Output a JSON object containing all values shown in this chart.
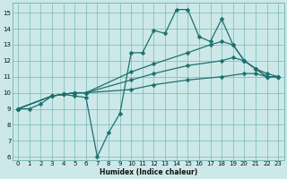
{
  "xlabel": "Humidex (Indice chaleur)",
  "bg_color": "#cce8e8",
  "grid_color": "#7ab8b8",
  "line_color": "#1e7070",
  "markersize": 2.5,
  "linewidth": 0.9,
  "xlim": [
    -0.5,
    23.5
  ],
  "ylim": [
    5.8,
    15.6
  ],
  "xticks": [
    0,
    1,
    2,
    3,
    4,
    5,
    6,
    7,
    8,
    9,
    10,
    11,
    12,
    13,
    14,
    15,
    16,
    17,
    18,
    19,
    20,
    21,
    22,
    23
  ],
  "yticks": [
    6,
    7,
    8,
    9,
    10,
    11,
    12,
    13,
    14,
    15
  ],
  "series1": [
    [
      0,
      9.0
    ],
    [
      1,
      9.0
    ],
    [
      2,
      9.3
    ],
    [
      3,
      9.8
    ],
    [
      4,
      9.9
    ],
    [
      5,
      9.8
    ],
    [
      6,
      9.7
    ],
    [
      7,
      6.0
    ],
    [
      8,
      7.5
    ],
    [
      9,
      8.7
    ],
    [
      10,
      12.5
    ],
    [
      11,
      12.5
    ],
    [
      12,
      13.9
    ],
    [
      13,
      13.7
    ],
    [
      14,
      15.2
    ],
    [
      15,
      15.2
    ],
    [
      16,
      13.5
    ],
    [
      17,
      13.2
    ],
    [
      18,
      14.6
    ],
    [
      19,
      13.0
    ],
    [
      20,
      12.0
    ],
    [
      21,
      11.5
    ],
    [
      22,
      11.0
    ],
    [
      23,
      11.0
    ]
  ],
  "series2": [
    [
      0,
      9.0
    ],
    [
      3,
      9.8
    ],
    [
      4,
      9.9
    ],
    [
      5,
      10.0
    ],
    [
      6,
      10.0
    ],
    [
      10,
      10.2
    ],
    [
      12,
      10.5
    ],
    [
      15,
      10.8
    ],
    [
      18,
      11.0
    ],
    [
      20,
      11.2
    ],
    [
      21,
      11.2
    ],
    [
      22,
      11.0
    ],
    [
      23,
      11.0
    ]
  ],
  "series3": [
    [
      0,
      9.0
    ],
    [
      3,
      9.8
    ],
    [
      4,
      9.9
    ],
    [
      5,
      10.0
    ],
    [
      6,
      10.0
    ],
    [
      10,
      10.8
    ],
    [
      12,
      11.2
    ],
    [
      15,
      11.7
    ],
    [
      18,
      12.0
    ],
    [
      19,
      12.2
    ],
    [
      20,
      12.0
    ],
    [
      21,
      11.5
    ],
    [
      22,
      11.0
    ],
    [
      23,
      11.0
    ]
  ],
  "series4": [
    [
      0,
      9.0
    ],
    [
      3,
      9.8
    ],
    [
      4,
      9.9
    ],
    [
      5,
      10.0
    ],
    [
      6,
      10.0
    ],
    [
      10,
      11.3
    ],
    [
      12,
      11.8
    ],
    [
      15,
      12.5
    ],
    [
      17,
      13.0
    ],
    [
      18,
      13.2
    ],
    [
      19,
      13.0
    ],
    [
      20,
      12.0
    ],
    [
      21,
      11.5
    ],
    [
      22,
      11.2
    ],
    [
      23,
      11.0
    ]
  ]
}
